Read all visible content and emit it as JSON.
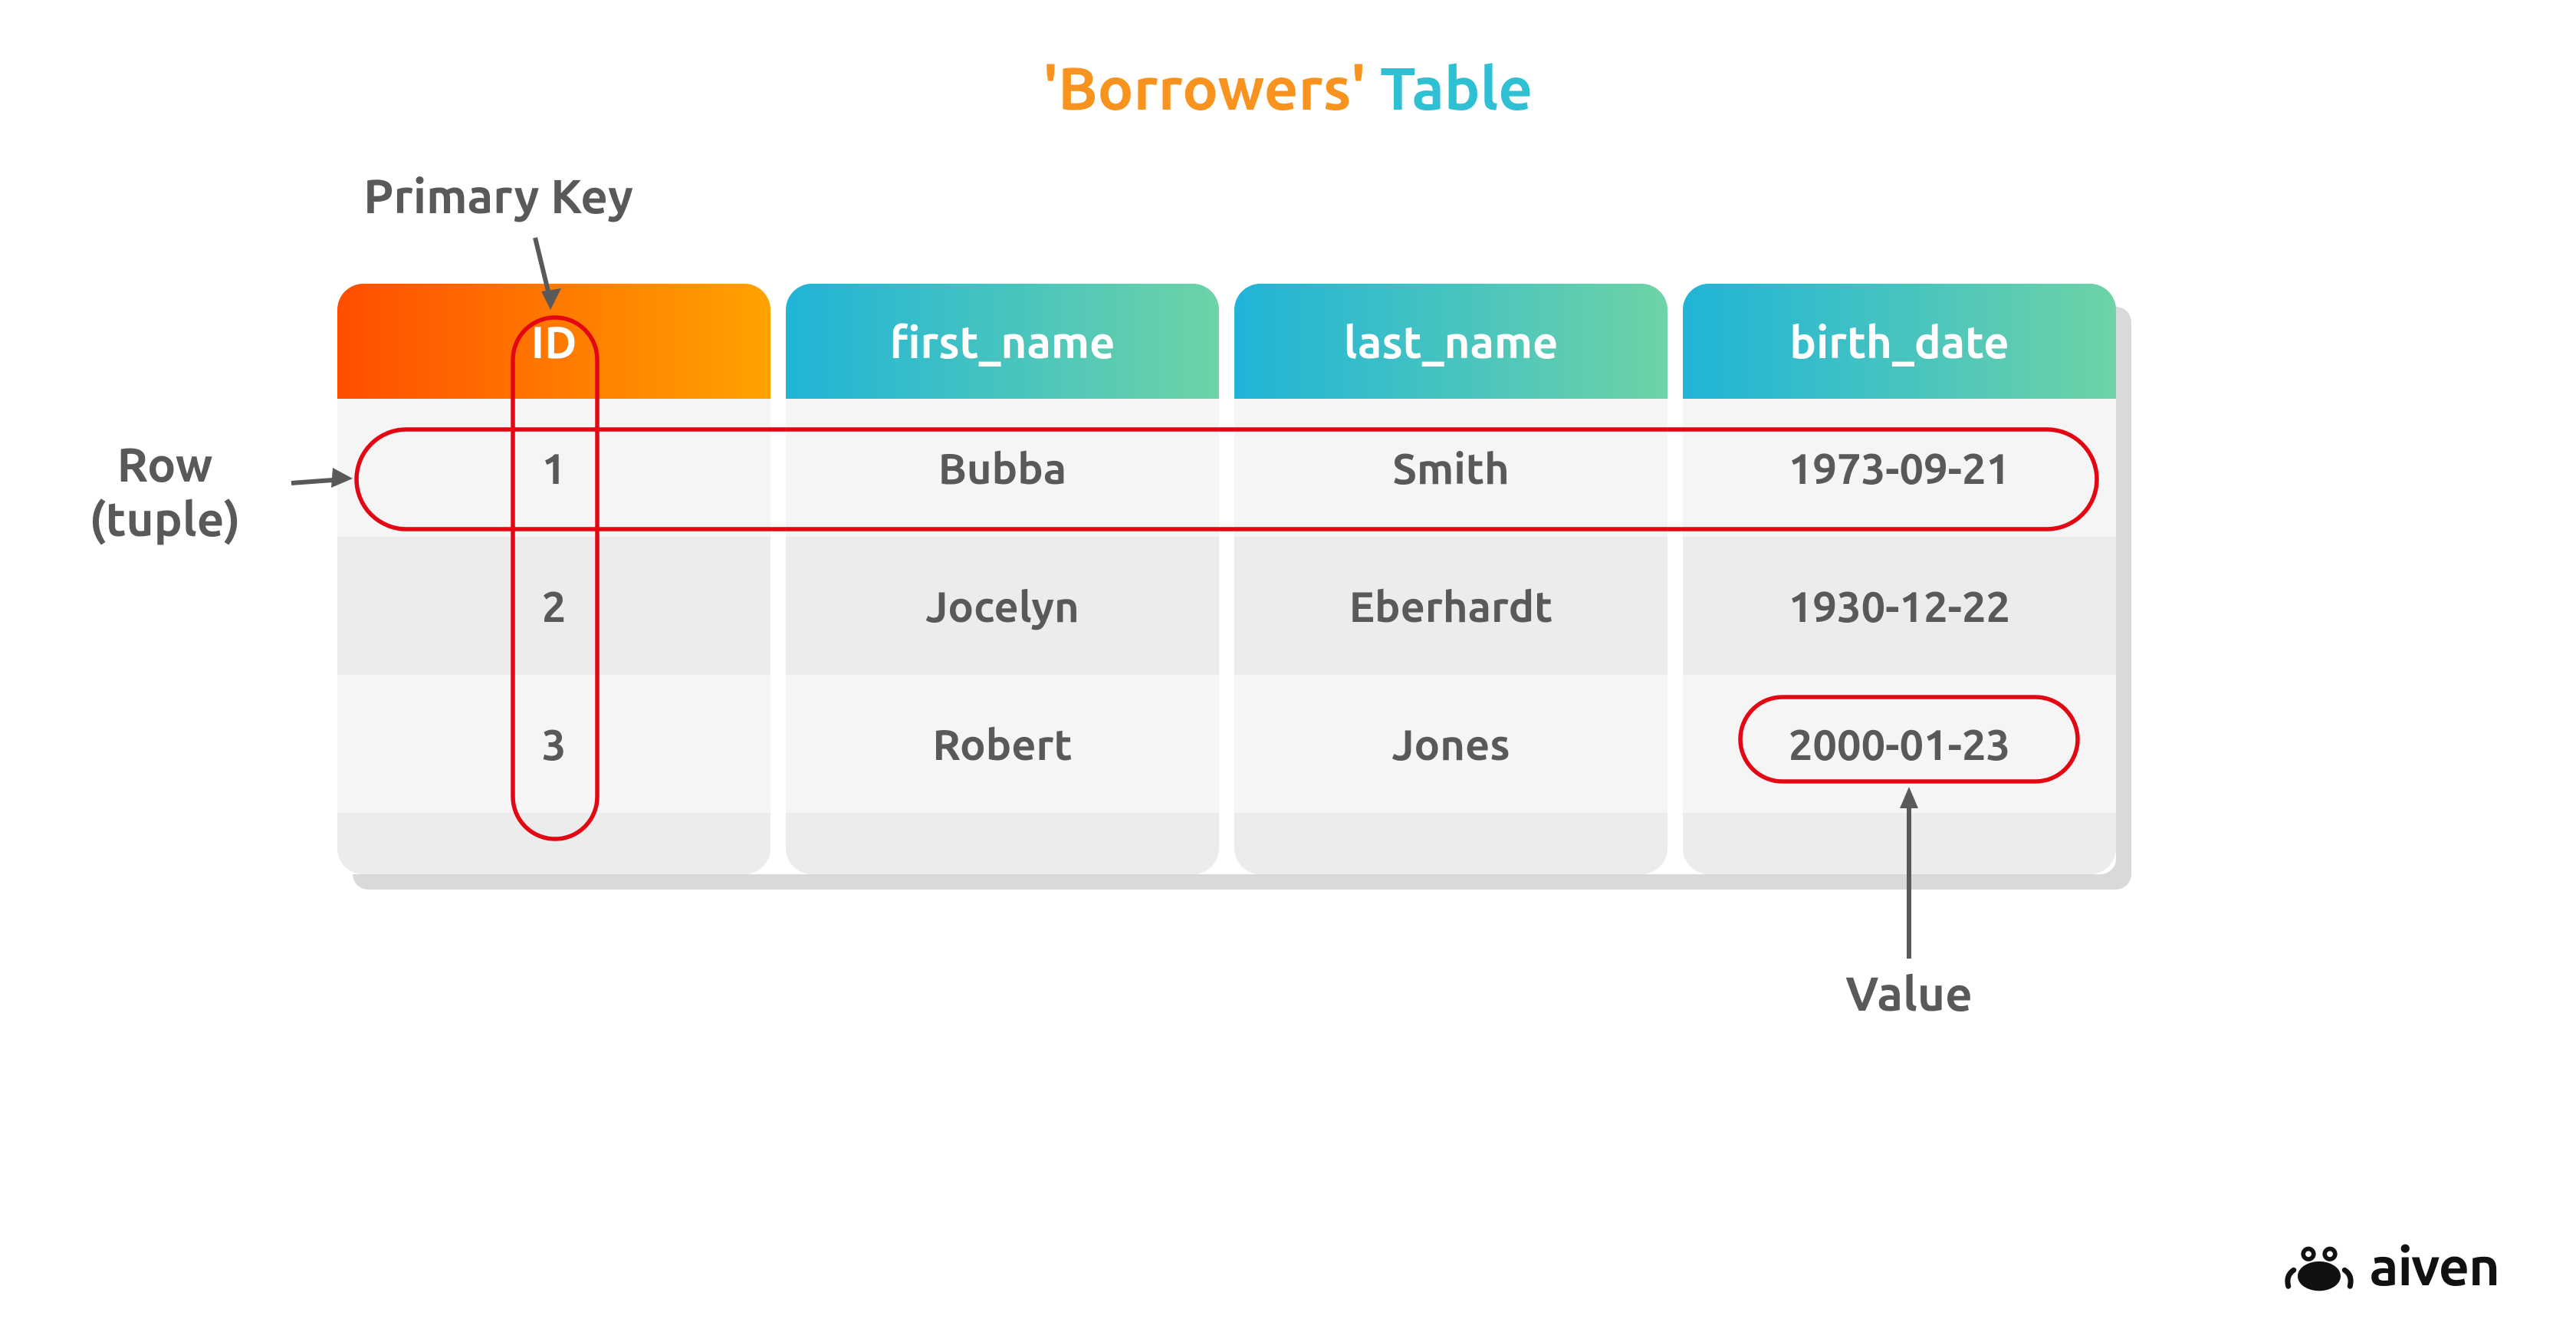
{
  "title": {
    "accent": "'Borrowers'",
    "rest": " Table"
  },
  "colors": {
    "title_accent": "#f7931e",
    "title_rest": "#30c0d4",
    "ann_text": "#595959",
    "cell_text": "#595959",
    "mark_red": "#e30613",
    "pk_grad_a": "#ff4e00",
    "pk_grad_b": "#ffa300",
    "hdr_grad_a": "#1fb4d8",
    "hdr_grad_b": "#6ed3a6",
    "col_bg": "#ececec",
    "row_bg_a": "#f5f5f5",
    "row_bg_b": "#ececec",
    "shadow": "#d9d9d9",
    "brand": "#111111"
  },
  "annotations": {
    "primary_key": "Primary Key",
    "row_tuple_line1": "Row",
    "row_tuple_line2": "(tuple)",
    "value": "Value"
  },
  "table": {
    "columns": [
      {
        "key": "id",
        "label": "ID",
        "is_pk": true
      },
      {
        "key": "first_name",
        "label": "first_name",
        "is_pk": false
      },
      {
        "key": "last_name",
        "label": "last_name",
        "is_pk": false
      },
      {
        "key": "birth_date",
        "label": "birth_date",
        "is_pk": false
      }
    ],
    "rows": [
      {
        "id": "1",
        "first_name": "Bubba",
        "last_name": "Smith",
        "birth_date": "1973-09-21"
      },
      {
        "id": "2",
        "first_name": "Jocelyn",
        "last_name": "Eberhardt",
        "birth_date": "1930-12-22"
      },
      {
        "id": "3",
        "first_name": "Robert",
        "last_name": "Jones",
        "birth_date": "2000-01-23"
      }
    ]
  },
  "brand": {
    "name": "aiven"
  }
}
